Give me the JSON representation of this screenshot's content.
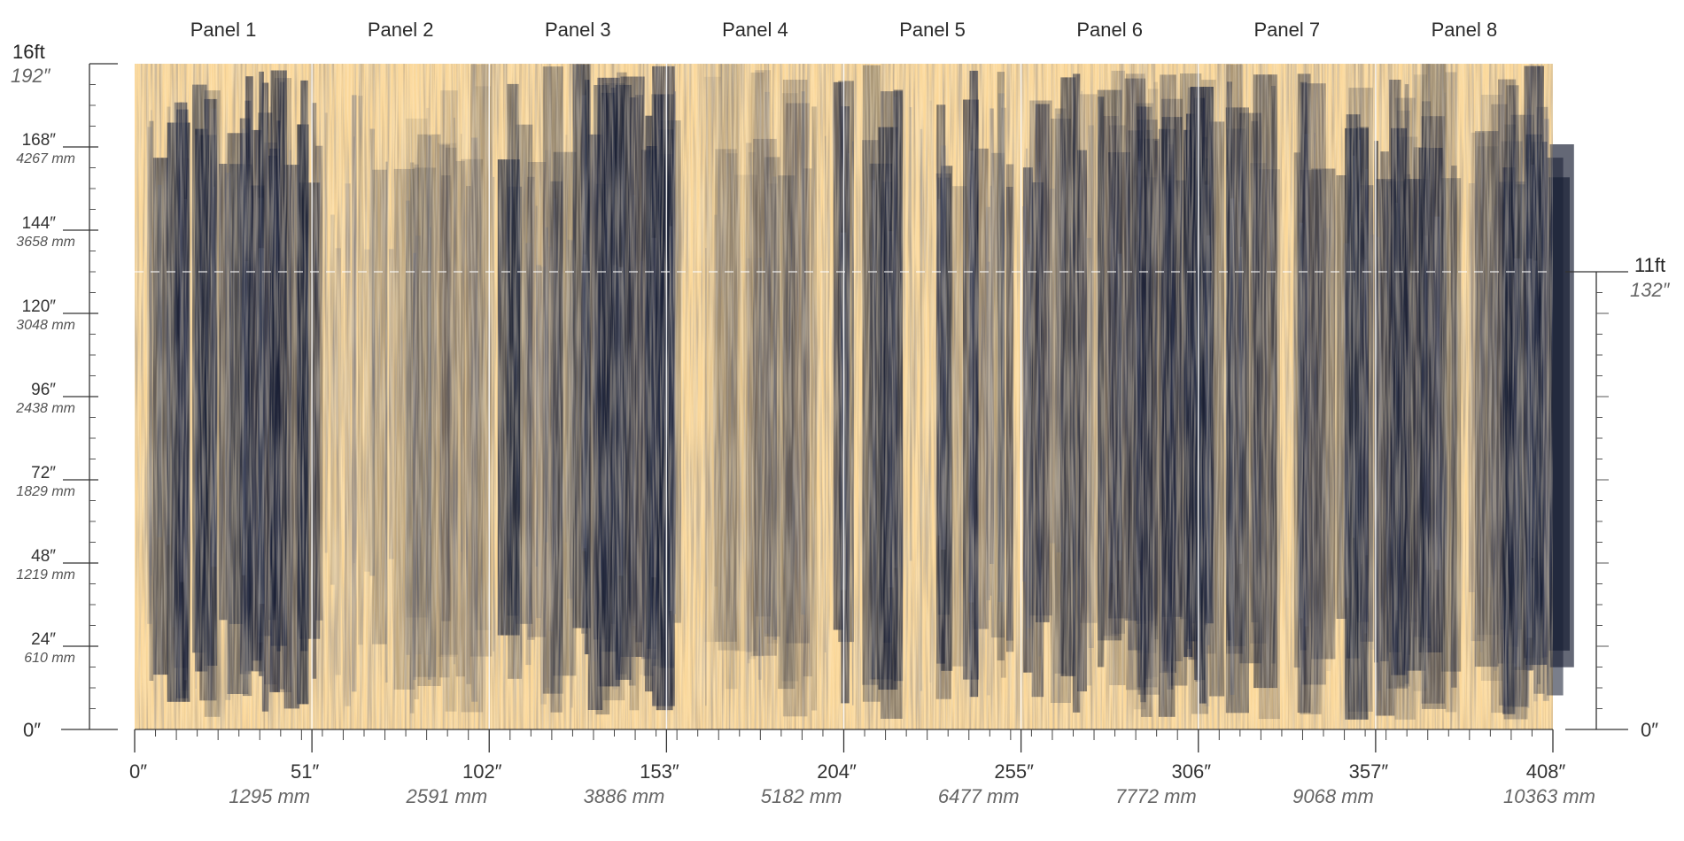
{
  "panels": [
    "Panel 1",
    "Panel 2",
    "Panel 3",
    "Panel 4",
    "Panel 5",
    "Panel 6",
    "Panel 7",
    "Panel 8"
  ],
  "left_scale": {
    "top_ft": "16ft",
    "top_in": "192″",
    "zero": "0″",
    "ticks": [
      {
        "inches": 168,
        "in_label": "168″",
        "mm_label": "4267 mm"
      },
      {
        "inches": 144,
        "in_label": "144″",
        "mm_label": "3658 mm"
      },
      {
        "inches": 120,
        "in_label": "120″",
        "mm_label": "3048 mm"
      },
      {
        "inches": 96,
        "in_label": "96″",
        "mm_label": "2438 mm"
      },
      {
        "inches": 72,
        "in_label": "72″",
        "mm_label": "1829 mm"
      },
      {
        "inches": 48,
        "in_label": "48″",
        "mm_label": "1219 mm"
      },
      {
        "inches": 24,
        "in_label": "24″",
        "mm_label": "610 mm"
      }
    ]
  },
  "right_scale": {
    "top_ft": "11ft",
    "top_in": "132″",
    "zero": "0″"
  },
  "bottom_scale": {
    "ticks": [
      {
        "inches": 0,
        "in_label": "0″",
        "mm_label": ""
      },
      {
        "inches": 51,
        "in_label": "51″",
        "mm_label": "1295 mm"
      },
      {
        "inches": 102,
        "in_label": "102″",
        "mm_label": "2591 mm"
      },
      {
        "inches": 153,
        "in_label": "153″",
        "mm_label": "3886 mm"
      },
      {
        "inches": 204,
        "in_label": "204″",
        "mm_label": "5182 mm"
      },
      {
        "inches": 255,
        "in_label": "255″",
        "mm_label": "6477 mm"
      },
      {
        "inches": 306,
        "in_label": "306″",
        "mm_label": "7772 mm"
      },
      {
        "inches": 357,
        "in_label": "357″",
        "mm_label": "9068 mm"
      },
      {
        "inches": 408,
        "in_label": "408″",
        "mm_label": "10363 mm"
      }
    ]
  },
  "colors": {
    "background": "#fbd89a",
    "ink": "#1a2035",
    "ink_light": "#5a6075",
    "divider": "#ffffff"
  }
}
